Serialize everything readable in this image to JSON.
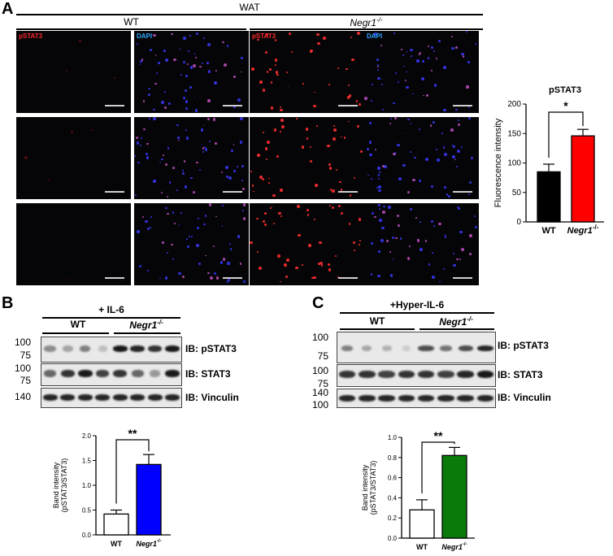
{
  "panelA": {
    "letter": "A",
    "tissue": "WAT",
    "wt": "WT",
    "ko": "Negr1",
    "ko_sup": "-/-",
    "channel_red": "pSTAT3",
    "channel_blue": "DAPI"
  },
  "panelB": {
    "letter": "B",
    "treatment": "+ IL-6",
    "wt": "WT",
    "ko": "Negr1",
    "ko_sup": "-/-",
    "mw": [
      "100",
      "75",
      "100",
      "75",
      "140"
    ],
    "ib": [
      "IB: pSTAT3",
      "IB: STAT3",
      "IB: Vinculin"
    ]
  },
  "panelC": {
    "letter": "C",
    "treatment": "+Hyper-IL-6",
    "wt": "WT",
    "ko": "Negr1",
    "ko_sup": "-/-",
    "mw": [
      "100",
      "75",
      "100",
      "75",
      "140",
      "100"
    ],
    "ib": [
      "IB: pSTAT3",
      "IB: STAT3",
      "IB: Vinculin"
    ]
  },
  "chart_data": [
    {
      "type": "bar",
      "title": "pSTAT3",
      "ylabel": "Fluorescence intensity",
      "categories": [
        "WT",
        "Negr1-/-"
      ],
      "values": [
        85,
        146
      ],
      "errors": [
        13,
        11
      ],
      "ylim": [
        0,
        200
      ],
      "yticks": [
        "0",
        "50",
        "100",
        "150",
        "200"
      ],
      "significance": "*",
      "colors": [
        "#000000",
        "#ff0000"
      ]
    },
    {
      "type": "bar",
      "title": "",
      "ylabel": "Band intensity\n(pSTAT3/STAT3)",
      "categories": [
        "WT",
        "Negr1-/-"
      ],
      "values": [
        0.42,
        1.42
      ],
      "errors": [
        0.08,
        0.2
      ],
      "ylim": [
        0,
        2.0
      ],
      "yticks": [
        "0.0",
        "0.5",
        "1.0",
        "1.5",
        "2.0"
      ],
      "significance": "**",
      "colors": [
        "#ffffff",
        "#0000ff"
      ]
    },
    {
      "type": "bar",
      "title": "",
      "ylabel": "Band intensity\n(pSTAT3/STAT3)",
      "categories": [
        "WT",
        "Negr1-/-"
      ],
      "values": [
        0.28,
        0.82
      ],
      "errors": [
        0.1,
        0.08
      ],
      "ylim": [
        0,
        1.0
      ],
      "yticks": [
        "0.0",
        "0.2",
        "0.4",
        "0.6",
        "0.8",
        "1.0"
      ],
      "significance": "**",
      "colors": [
        "#ffffff",
        "#0a7a0a"
      ]
    }
  ]
}
